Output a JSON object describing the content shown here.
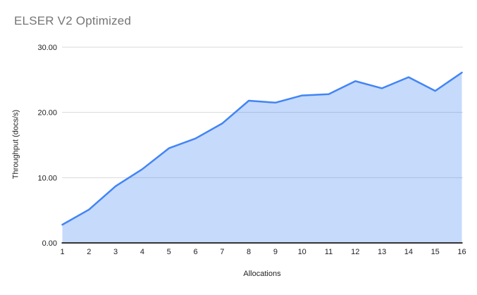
{
  "chart": {
    "title": "ELSER V2 Optimized"
  },
  "chart_data": {
    "type": "area",
    "title": "ELSER V2 Optimized",
    "xlabel": "Allocations",
    "ylabel": "Throughput (docs/s)",
    "x": [
      1,
      2,
      3,
      4,
      5,
      6,
      7,
      8,
      9,
      10,
      11,
      12,
      13,
      14,
      15,
      16
    ],
    "series": [
      {
        "name": "Throughput (docs/s)",
        "values": [
          2.8,
          5.1,
          8.7,
          11.3,
          14.5,
          16.0,
          18.3,
          21.8,
          21.5,
          22.6,
          22.8,
          24.8,
          23.7,
          25.4,
          23.3,
          26.1
        ]
      }
    ],
    "xlim": [
      1,
      16
    ],
    "ylim": [
      0,
      30
    ],
    "xticks": [
      "1",
      "2",
      "3",
      "4",
      "5",
      "6",
      "7",
      "8",
      "9",
      "10",
      "11",
      "12",
      "13",
      "14",
      "15",
      "16"
    ],
    "yticks": [
      0,
      10,
      20,
      30
    ],
    "ytick_labels": [
      "0.00",
      "10.00",
      "20.00",
      "30.00"
    ],
    "grid": "horizontal-only",
    "legend": "none",
    "colors": {
      "line": "#4285f4",
      "fill": "rgba(66,133,244,0.3)",
      "gridline": "#d9d9d9",
      "axis_line": "#333333",
      "tick_text": "#202124",
      "title_text": "#757575"
    }
  }
}
